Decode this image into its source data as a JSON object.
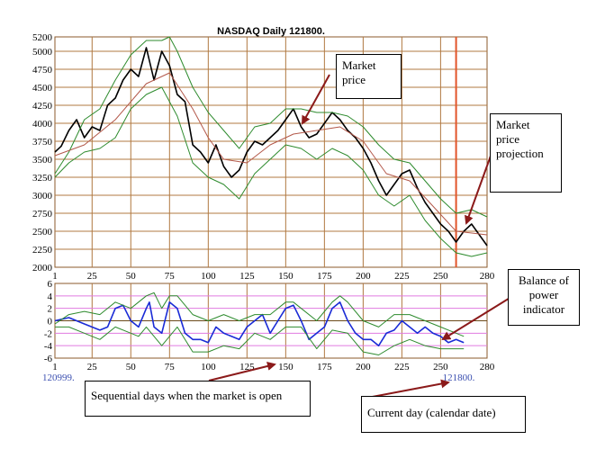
{
  "chart_data": [
    {
      "type": "line",
      "title": "NASDAQ Daily 121800.",
      "ylim": [
        2000,
        5200
      ],
      "xlim": [
        1,
        280
      ],
      "yticks": [
        "5200",
        "5000",
        "4750",
        "4500",
        "4250",
        "4000",
        "3750",
        "3500",
        "3250",
        "3000",
        "2750",
        "2500",
        "2250",
        "2000"
      ],
      "xticks": [
        "1",
        "25",
        "50",
        "75",
        "100",
        "125",
        "150",
        "175",
        "200",
        "225",
        "250",
        "280"
      ],
      "projection_day": 260,
      "grid": true,
      "series": [
        {
          "role": "price",
          "color": "#000000",
          "points": [
            [
              1,
              3600
            ],
            [
              5,
              3680
            ],
            [
              10,
              3900
            ],
            [
              15,
              4050
            ],
            [
              20,
              3800
            ],
            [
              25,
              3950
            ],
            [
              30,
              3900
            ],
            [
              35,
              4250
            ],
            [
              40,
              4350
            ],
            [
              45,
              4600
            ],
            [
              50,
              4750
            ],
            [
              55,
              4650
            ],
            [
              60,
              5050
            ],
            [
              65,
              4600
            ],
            [
              70,
              5000
            ],
            [
              75,
              4800
            ],
            [
              80,
              4400
            ],
            [
              85,
              4300
            ],
            [
              90,
              3700
            ],
            [
              95,
              3600
            ],
            [
              100,
              3450
            ],
            [
              105,
              3700
            ],
            [
              110,
              3400
            ],
            [
              115,
              3250
            ],
            [
              120,
              3350
            ],
            [
              125,
              3600
            ],
            [
              130,
              3750
            ],
            [
              135,
              3700
            ],
            [
              140,
              3800
            ],
            [
              145,
              3900
            ],
            [
              150,
              4050
            ],
            [
              155,
              4200
            ],
            [
              160,
              3950
            ],
            [
              165,
              3800
            ],
            [
              170,
              3850
            ],
            [
              175,
              4000
            ],
            [
              180,
              4150
            ],
            [
              185,
              4050
            ],
            [
              190,
              3900
            ],
            [
              195,
              3800
            ],
            [
              200,
              3650
            ],
            [
              205,
              3450
            ],
            [
              210,
              3200
            ],
            [
              215,
              3000
            ],
            [
              220,
              3150
            ],
            [
              225,
              3300
            ],
            [
              230,
              3350
            ],
            [
              235,
              3100
            ],
            [
              240,
              2900
            ],
            [
              245,
              2750
            ],
            [
              250,
              2600
            ],
            [
              255,
              2500
            ],
            [
              260,
              2350
            ],
            [
              265,
              2500
            ],
            [
              270,
              2600
            ],
            [
              275,
              2450
            ],
            [
              280,
              2300
            ]
          ]
        },
        {
          "role": "upper-band",
          "color": "#2e8b2e",
          "points": [
            [
              1,
              3300
            ],
            [
              10,
              3600
            ],
            [
              20,
              4050
            ],
            [
              30,
              4200
            ],
            [
              40,
              4600
            ],
            [
              50,
              4950
            ],
            [
              60,
              5150
            ],
            [
              70,
              5150
            ],
            [
              75,
              5200
            ],
            [
              80,
              5000
            ],
            [
              90,
              4500
            ],
            [
              100,
              4150
            ],
            [
              110,
              3900
            ],
            [
              120,
              3650
            ],
            [
              130,
              3950
            ],
            [
              140,
              4000
            ],
            [
              150,
              4200
            ],
            [
              160,
              4200
            ],
            [
              170,
              4150
            ],
            [
              180,
              4150
            ],
            [
              190,
              4100
            ],
            [
              200,
              3950
            ],
            [
              210,
              3700
            ],
            [
              220,
              3500
            ],
            [
              230,
              3450
            ],
            [
              240,
              3200
            ],
            [
              250,
              2950
            ],
            [
              260,
              2750
            ],
            [
              270,
              2800
            ],
            [
              280,
              2700
            ]
          ]
        },
        {
          "role": "lower-band",
          "color": "#2e8b2e",
          "points": [
            [
              1,
              3250
            ],
            [
              10,
              3450
            ],
            [
              20,
              3600
            ],
            [
              30,
              3650
            ],
            [
              40,
              3800
            ],
            [
              50,
              4200
            ],
            [
              60,
              4400
            ],
            [
              70,
              4500
            ],
            [
              80,
              4100
            ],
            [
              90,
              3450
            ],
            [
              100,
              3250
            ],
            [
              110,
              3150
            ],
            [
              120,
              2950
            ],
            [
              130,
              3300
            ],
            [
              140,
              3500
            ],
            [
              150,
              3700
            ],
            [
              160,
              3650
            ],
            [
              170,
              3500
            ],
            [
              180,
              3650
            ],
            [
              190,
              3550
            ],
            [
              200,
              3350
            ],
            [
              210,
              3000
            ],
            [
              220,
              2850
            ],
            [
              230,
              3000
            ],
            [
              240,
              2650
            ],
            [
              250,
              2400
            ],
            [
              260,
              2200
            ],
            [
              270,
              2150
            ],
            [
              280,
              2200
            ]
          ]
        },
        {
          "role": "moving-average",
          "color": "#b3584a",
          "points": [
            [
              1,
              3550
            ],
            [
              20,
              3700
            ],
            [
              40,
              4050
            ],
            [
              60,
              4550
            ],
            [
              75,
              4700
            ],
            [
              90,
              4200
            ],
            [
              100,
              3800
            ],
            [
              110,
              3500
            ],
            [
              125,
              3450
            ],
            [
              140,
              3700
            ],
            [
              155,
              3850
            ],
            [
              170,
              3900
            ],
            [
              185,
              3950
            ],
            [
              200,
              3750
            ],
            [
              215,
              3300
            ],
            [
              230,
              3200
            ],
            [
              245,
              2850
            ],
            [
              260,
              2500
            ],
            [
              280,
              2450
            ]
          ]
        }
      ]
    },
    {
      "type": "line",
      "ylim": [
        -6,
        6
      ],
      "xlim": [
        1,
        280
      ],
      "yticks": [
        "6",
        "4",
        "2",
        "0",
        "-2",
        "-4",
        "-6"
      ],
      "xticks": [
        "1",
        "25",
        "50",
        "75",
        "100",
        "125",
        "150",
        "175",
        "200",
        "225",
        "250",
        "280"
      ],
      "start_label": "120999.",
      "end_label": "121800.",
      "series": [
        {
          "role": "indicator",
          "color": "#1a2bd6",
          "points": [
            [
              1,
              0
            ],
            [
              10,
              0.5
            ],
            [
              20,
              -0.5
            ],
            [
              30,
              -1.5
            ],
            [
              35,
              -1
            ],
            [
              40,
              2
            ],
            [
              45,
              2.5
            ],
            [
              50,
              0
            ],
            [
              55,
              -1
            ],
            [
              60,
              2
            ],
            [
              62,
              3
            ],
            [
              65,
              -1
            ],
            [
              70,
              -2
            ],
            [
              75,
              3
            ],
            [
              80,
              2
            ],
            [
              85,
              -2
            ],
            [
              90,
              -3
            ],
            [
              95,
              -3
            ],
            [
              100,
              -3.5
            ],
            [
              105,
              -1
            ],
            [
              110,
              -2
            ],
            [
              115,
              -2.5
            ],
            [
              120,
              -3
            ],
            [
              125,
              -1
            ],
            [
              130,
              0
            ],
            [
              135,
              1
            ],
            [
              140,
              -2
            ],
            [
              145,
              0
            ],
            [
              150,
              2
            ],
            [
              155,
              2.5
            ],
            [
              160,
              0
            ],
            [
              165,
              -3
            ],
            [
              170,
              -2
            ],
            [
              175,
              -1
            ],
            [
              180,
              2
            ],
            [
              185,
              3
            ],
            [
              190,
              0
            ],
            [
              195,
              -2
            ],
            [
              200,
              -3
            ],
            [
              205,
              -3
            ],
            [
              210,
              -4
            ],
            [
              215,
              -2
            ],
            [
              220,
              -1.5
            ],
            [
              225,
              0
            ],
            [
              230,
              -1
            ],
            [
              235,
              -2
            ],
            [
              240,
              -1
            ],
            [
              245,
              -2
            ],
            [
              250,
              -2.5
            ],
            [
              255,
              -3.5
            ],
            [
              260,
              -3
            ],
            [
              265,
              -3.5
            ]
          ]
        },
        {
          "role": "upper-band",
          "color": "#2e8b2e",
          "points": [
            [
              1,
              -0.5
            ],
            [
              10,
              1
            ],
            [
              20,
              1.5
            ],
            [
              30,
              1
            ],
            [
              40,
              3
            ],
            [
              50,
              2
            ],
            [
              60,
              4
            ],
            [
              65,
              4.5
            ],
            [
              70,
              2
            ],
            [
              75,
              4
            ],
            [
              80,
              4
            ],
            [
              90,
              1
            ],
            [
              100,
              0
            ],
            [
              110,
              1
            ],
            [
              120,
              0
            ],
            [
              130,
              1
            ],
            [
              140,
              1
            ],
            [
              150,
              3
            ],
            [
              155,
              3
            ],
            [
              160,
              2
            ],
            [
              170,
              0
            ],
            [
              180,
              3
            ],
            [
              185,
              4
            ],
            [
              190,
              3
            ],
            [
              200,
              0
            ],
            [
              210,
              -1
            ],
            [
              220,
              1
            ],
            [
              230,
              1
            ],
            [
              240,
              0
            ],
            [
              250,
              -1
            ],
            [
              260,
              -2
            ],
            [
              265,
              -2.5
            ]
          ]
        },
        {
          "role": "lower-band",
          "color": "#2e8b2e",
          "points": [
            [
              1,
              -1
            ],
            [
              10,
              -1
            ],
            [
              20,
              -2
            ],
            [
              30,
              -3
            ],
            [
              40,
              -1
            ],
            [
              50,
              -2
            ],
            [
              55,
              -2.5
            ],
            [
              60,
              -1
            ],
            [
              70,
              -4
            ],
            [
              80,
              -1
            ],
            [
              90,
              -5
            ],
            [
              100,
              -5
            ],
            [
              110,
              -4
            ],
            [
              120,
              -4.5
            ],
            [
              130,
              -2
            ],
            [
              140,
              -3
            ],
            [
              150,
              -1
            ],
            [
              160,
              -1
            ],
            [
              170,
              -4.5
            ],
            [
              180,
              -1.5
            ],
            [
              190,
              -2
            ],
            [
              200,
              -5
            ],
            [
              210,
              -5.5
            ],
            [
              220,
              -4
            ],
            [
              230,
              -3
            ],
            [
              240,
              -4
            ],
            [
              250,
              -4.5
            ],
            [
              260,
              -4.5
            ],
            [
              265,
              -4.5
            ]
          ]
        }
      ]
    }
  ],
  "annotations": [
    {
      "text": "Market price"
    },
    {
      "text": "Market price projection"
    },
    {
      "text": "Balance of power indicator"
    },
    {
      "text": "Sequential days when the market is open"
    },
    {
      "text": "Current day (calendar date)"
    }
  ]
}
